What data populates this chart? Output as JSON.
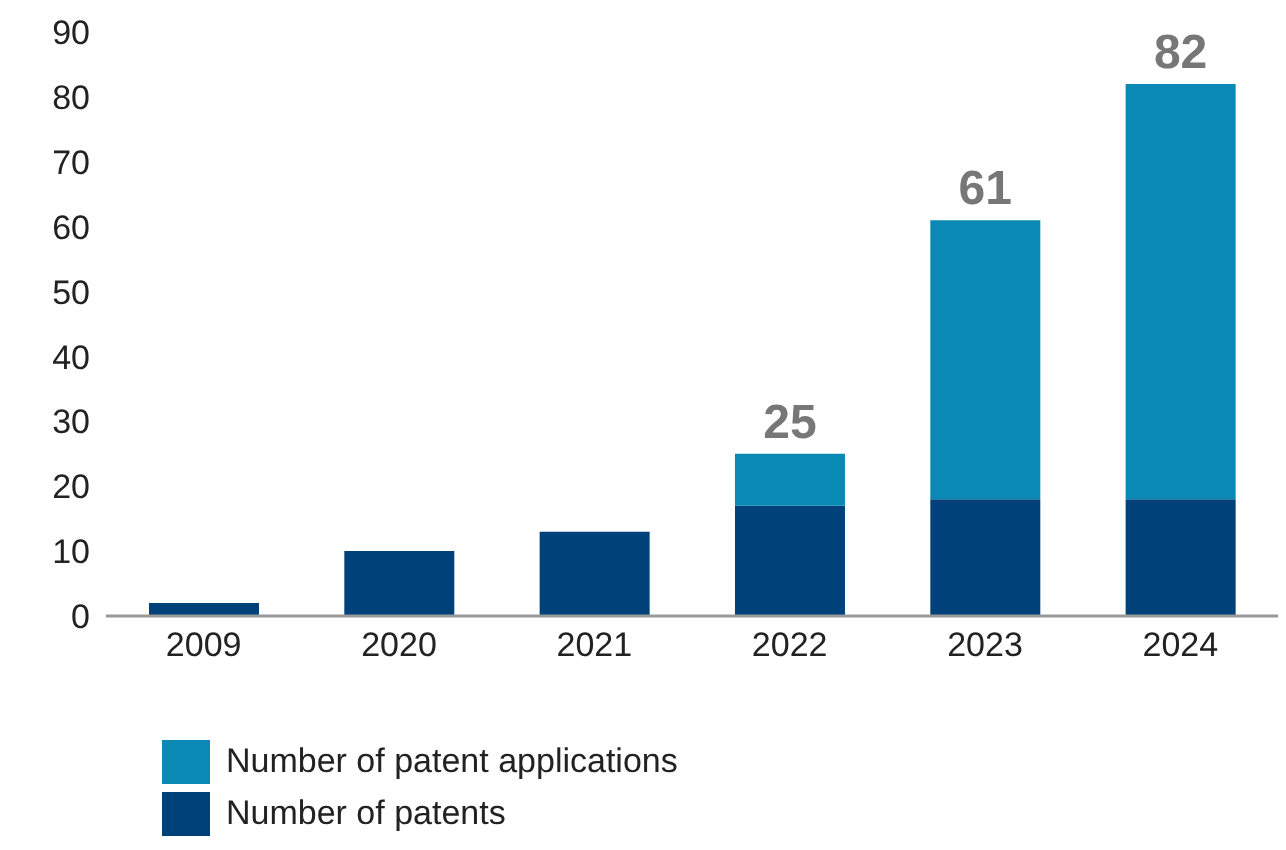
{
  "chart_data": {
    "type": "bar",
    "stacked": true,
    "categories": [
      "2009",
      "2020",
      "2021",
      "2022",
      "2023",
      "2024"
    ],
    "series": [
      {
        "name": "Number of patents",
        "color": "#00417a",
        "values": [
          2,
          10,
          13,
          17,
          18,
          18
        ]
      },
      {
        "name": "Number of patent applications",
        "color": "#0a89b4",
        "values": [
          null,
          null,
          null,
          8,
          43,
          64
        ]
      }
    ],
    "totals": [
      null,
      null,
      null,
      "25",
      "61",
      "82"
    ],
    "ylim": [
      0,
      90
    ],
    "yticks": [
      0,
      10,
      20,
      30,
      40,
      50,
      60,
      70,
      80,
      90
    ],
    "grid": false,
    "legend": "bottom left"
  }
}
